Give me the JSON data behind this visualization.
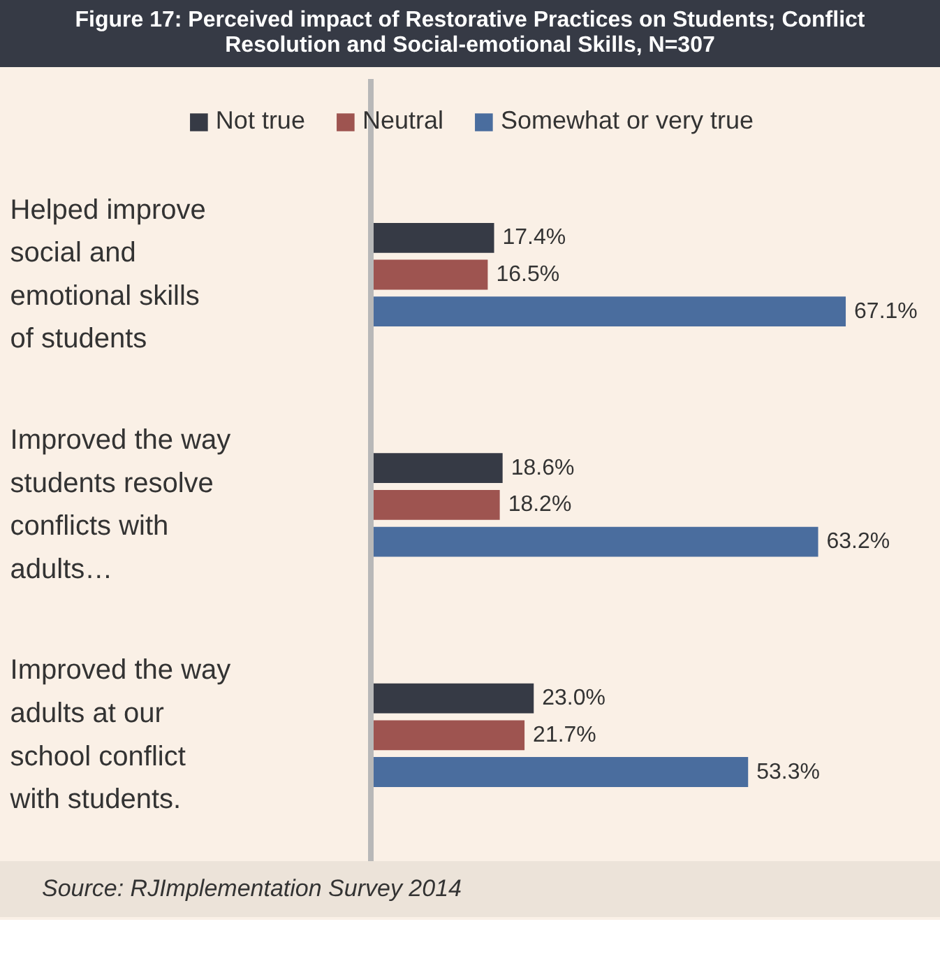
{
  "chart_data": {
    "type": "bar",
    "orientation": "horizontal",
    "title": "Figure 17: Perceived impact of Restorative Practices on Students; Conflict Resolution and Social-emotional Skills, N=307",
    "categories": [
      "Helped improve social and emotional skills of students",
      "Improved the way students resolve conflicts with adults…",
      "Improved the way adults at our school conflict with students."
    ],
    "series": [
      {
        "name": "Not true",
        "color": "#363a45",
        "values": [
          17.4,
          18.6,
          23.0
        ],
        "value_labels": [
          "17.4%",
          "18.6%",
          "23.0%"
        ]
      },
      {
        "name": "Neutral",
        "color": "#9e5450",
        "values": [
          16.5,
          18.2,
          21.7
        ],
        "value_labels": [
          "16.5%",
          "18.2%",
          "21.7%"
        ]
      },
      {
        "name": "Somewhat or very true",
        "color": "#4a6d9e",
        "values": [
          67.1,
          63.2,
          53.3
        ],
        "value_labels": [
          "67.1%",
          "63.2%",
          "53.3%"
        ]
      }
    ],
    "legend": "top",
    "grid": false,
    "annotations": [
      "Source: RJImplementation Survey 2014"
    ]
  }
}
